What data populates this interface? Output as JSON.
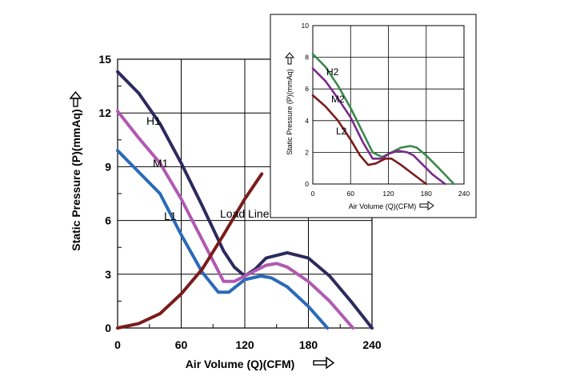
{
  "chart_data": [
    {
      "type": "line",
      "xlabel": "Air Volume (Q)(CFM)",
      "ylabel": "Static Pressure (P)(mmAq)",
      "xlim": [
        0,
        240
      ],
      "ylim": [
        0,
        15
      ],
      "xticks": [
        "0",
        "60",
        "120",
        "180",
        "240"
      ],
      "yticks": [
        "0",
        "3",
        "6",
        "9",
        "12",
        "15"
      ],
      "grid": true,
      "series": [
        {
          "name": "H1",
          "color": "#2d2a5e",
          "x": [
            0,
            20,
            40,
            60,
            80,
            100,
            110,
            120,
            130,
            140,
            160,
            180,
            200,
            220,
            240
          ],
          "y": [
            14.3,
            13.1,
            11.4,
            9.2,
            6.8,
            4.3,
            3.4,
            2.9,
            3.3,
            3.9,
            4.2,
            3.9,
            2.9,
            1.5,
            0
          ]
        },
        {
          "name": "M1",
          "color": "#b05ab0",
          "x": [
            0,
            20,
            40,
            60,
            80,
            100,
            110,
            120,
            140,
            150,
            160,
            180,
            200,
            222
          ],
          "y": [
            12.1,
            10.6,
            9.2,
            7.2,
            4.9,
            2.6,
            2.6,
            2.9,
            3.5,
            3.6,
            3.4,
            2.6,
            1.5,
            0
          ]
        },
        {
          "name": "L1",
          "color": "#2a6ab8",
          "x": [
            0,
            20,
            40,
            60,
            80,
            95,
            105,
            120,
            135,
            145,
            160,
            180,
            198
          ],
          "y": [
            9.9,
            8.7,
            7.5,
            5.2,
            3.1,
            2.0,
            2.0,
            2.7,
            2.9,
            2.8,
            2.3,
            1.2,
            0
          ]
        },
        {
          "name": "Load Line",
          "color": "#7a1c1c",
          "x": [
            0,
            20,
            40,
            60,
            80,
            100,
            120,
            136
          ],
          "y": [
            0,
            0.25,
            0.8,
            1.9,
            3.3,
            5.2,
            7.2,
            8.6
          ]
        }
      ],
      "annotations": [
        "H1",
        "M1",
        "L1",
        "Load Line"
      ]
    },
    {
      "type": "line",
      "xlabel": "Air Volume (Q)(CFM)",
      "ylabel": "Static Pressure (P)(mmAq)",
      "xlim": [
        0,
        240
      ],
      "ylim": [
        0,
        10
      ],
      "xticks": [
        "0",
        "60",
        "120",
        "180",
        "240"
      ],
      "yticks": [
        "0",
        "2",
        "4",
        "6",
        "8",
        "10"
      ],
      "grid": true,
      "series": [
        {
          "name": "H2",
          "color": "#3a8a4a",
          "x": [
            0,
            20,
            40,
            60,
            80,
            95,
            110,
            120,
            140,
            155,
            165,
            180,
            200,
            224
          ],
          "y": [
            8.2,
            7.4,
            6.2,
            4.8,
            3.2,
            2.0,
            1.7,
            1.9,
            2.3,
            2.4,
            2.3,
            1.8,
            1.0,
            0
          ]
        },
        {
          "name": "M2",
          "color": "#7a2a8a",
          "x": [
            0,
            20,
            40,
            60,
            80,
            95,
            110,
            120,
            135,
            150,
            160,
            175,
            190,
            210
          ],
          "y": [
            7.3,
            6.5,
            5.4,
            4.2,
            2.6,
            1.6,
            1.6,
            1.9,
            2.1,
            2.0,
            1.8,
            1.2,
            0.6,
            0
          ]
        },
        {
          "name": "L2",
          "color": "#7a1c1c",
          "x": [
            0,
            20,
            40,
            60,
            75,
            88,
            100,
            115,
            125,
            140,
            160,
            180
          ],
          "y": [
            5.6,
            4.9,
            4.0,
            2.8,
            1.8,
            1.2,
            1.3,
            1.6,
            1.6,
            1.2,
            0.6,
            0
          ]
        }
      ],
      "annotations": [
        "H2",
        "M2",
        "L2"
      ]
    }
  ]
}
